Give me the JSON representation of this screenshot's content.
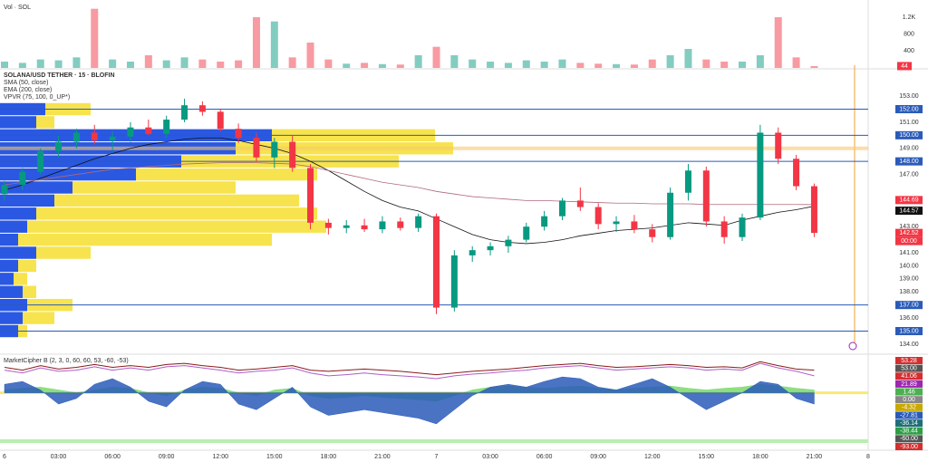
{
  "chart_data": [
    {
      "type": "bar",
      "title": "Vol · SOL",
      "values": [
        150,
        120,
        200,
        180,
        250,
        1400,
        200,
        150,
        300,
        180,
        250,
        200,
        150,
        180,
        1200,
        1100,
        250,
        600,
        200,
        100,
        120,
        90,
        80,
        300,
        500,
        300,
        200,
        150,
        120,
        180,
        150,
        200,
        120,
        100,
        90,
        80,
        200,
        300,
        450,
        200,
        150,
        150,
        300,
        1200,
        250,
        44
      ],
      "ylim": [
        0,
        1500
      ],
      "yticks": [
        400,
        800,
        {
          "value": 1200,
          "label": "1.2K"
        }
      ]
    },
    {
      "type": "candlestick",
      "title": "SOLANA/USD TETHER · 15 · BLOFIN",
      "x": [
        0,
        1,
        2,
        3,
        4,
        5,
        6,
        7,
        8,
        9,
        10,
        11,
        12,
        13,
        14,
        15,
        16,
        17,
        18,
        19,
        20,
        21,
        22,
        23,
        24,
        25,
        26,
        27,
        28,
        29,
        30,
        31,
        32,
        33,
        34,
        35,
        36,
        37,
        38,
        39,
        40,
        41,
        42,
        43,
        44,
        45
      ],
      "open": [
        145.5,
        146.2,
        147.2,
        148.8,
        149.5,
        150.2,
        149.6,
        149.9,
        150.6,
        150.1,
        151.2,
        152.3,
        151.8,
        150.5,
        149.8,
        148.3,
        149.5,
        147.5,
        143.3,
        142.9,
        143.1,
        142.8,
        143.4,
        142.9,
        143.8,
        136.8,
        140.8,
        141.2,
        141.5,
        142,
        143,
        143.8,
        145,
        144.5,
        143.2,
        143.4,
        142.8,
        142.2,
        145.6,
        147.3,
        143.4,
        142.2,
        143.7,
        150.2,
        148.2,
        146.1
      ],
      "high": [
        146.5,
        147.5,
        149,
        150,
        150.5,
        150.8,
        150.3,
        151,
        151.2,
        151.5,
        152.8,
        152.6,
        152,
        150.9,
        150.2,
        149.8,
        150,
        147.8,
        143.6,
        143.5,
        143.6,
        143.8,
        143.7,
        144,
        144,
        141.2,
        141.5,
        141.8,
        142.3,
        143.3,
        144.2,
        145.2,
        146,
        144.8,
        143.8,
        143.9,
        143.2,
        146,
        147.8,
        147.6,
        143.8,
        144,
        150.8,
        150.6,
        148.5,
        146.3
      ],
      "low": [
        145,
        145.8,
        147,
        148.3,
        149,
        149.3,
        148.8,
        149.5,
        150,
        149.8,
        151,
        151.5,
        150.3,
        149.4,
        148,
        147.5,
        147.2,
        142.8,
        142.4,
        142.5,
        142.6,
        142.5,
        142.7,
        142.6,
        136.3,
        136.5,
        140.3,
        140.8,
        141,
        141.8,
        142.7,
        143.5,
        144.2,
        142.8,
        142.6,
        142.5,
        141.8,
        142,
        145,
        143,
        141.7,
        141.9,
        143.5,
        147.8,
        145.8,
        142.2
      ],
      "close": [
        146.2,
        147.2,
        148.8,
        149.5,
        150.2,
        149.6,
        149.9,
        150.6,
        150.1,
        151.2,
        152.3,
        151.8,
        150.5,
        149.8,
        148.3,
        149.5,
        147.5,
        143.3,
        142.9,
        143.1,
        142.8,
        143.4,
        142.9,
        143.8,
        136.8,
        140.8,
        141.2,
        141.5,
        142,
        143,
        143.8,
        145,
        144.5,
        143.2,
        143.4,
        142.8,
        142.2,
        145.6,
        147.3,
        143.4,
        142.2,
        143.7,
        150.2,
        148.2,
        146.1,
        142.52
      ],
      "up_color": "#089981",
      "down_color": "#f23645",
      "series": [
        {
          "name": "SMA (50, close)",
          "color": "#111111",
          "values": [
            145.8,
            146.2,
            146.7,
            147.2,
            147.7,
            148.2,
            148.6,
            149,
            149.3,
            149.5,
            149.7,
            149.8,
            149.8,
            149.6,
            149.3,
            149,
            148.6,
            148,
            147.3,
            146.5,
            145.7,
            145,
            144.5,
            144.2,
            143.6,
            143,
            142.4,
            142,
            141.8,
            141.7,
            141.8,
            142,
            142.3,
            142.5,
            142.7,
            142.8,
            142.9,
            143.1,
            143.3,
            143.2,
            143.1,
            143.5,
            143.8,
            144.1,
            144.3,
            144.57
          ]
        },
        {
          "name": "EMA (200, close)",
          "color": "#b0697a",
          "values": [
            146.2,
            146.4,
            146.6,
            146.8,
            147,
            147.2,
            147.4,
            147.5,
            147.6,
            147.7,
            147.8,
            147.85,
            147.9,
            147.9,
            147.9,
            147.85,
            147.8,
            147.6,
            147.3,
            147,
            146.7,
            146.4,
            146.2,
            146,
            145.7,
            145.5,
            145.3,
            145.2,
            145.1,
            145,
            145,
            144.95,
            144.9,
            144.85,
            144.8,
            144.8,
            144.75,
            144.75,
            144.75,
            144.7,
            144.7,
            144.7,
            144.7,
            144.7,
            144.7,
            144.69
          ]
        }
      ],
      "profile": {
        "name": "VPVR (75, 100, 0_UP*)",
        "up_color": "#1f4fe0",
        "down_color": "#f6e03a",
        "levels": [
          135,
          136,
          137,
          138,
          139,
          140,
          141,
          142,
          143,
          144,
          145,
          146,
          147,
          148,
          149,
          150,
          151,
          152
        ],
        "up": [
          20,
          25,
          30,
          25,
          15,
          20,
          40,
          20,
          30,
          40,
          60,
          80,
          150,
          200,
          260,
          300,
          40,
          50
        ],
        "down": [
          10,
          35,
          50,
          15,
          15,
          20,
          60,
          280,
          330,
          310,
          270,
          180,
          200,
          240,
          240,
          180,
          20,
          50
        ]
      },
      "levels": [
        {
          "value": 152,
          "label": "152.00"
        },
        {
          "value": 150,
          "label": "150.00"
        },
        {
          "value": 148,
          "label": "148.00"
        },
        {
          "value": 137,
          "label": "137.00"
        },
        {
          "value": 135,
          "label": "135.00"
        }
      ],
      "level_color": "#2a5bb8",
      "countdown": "00:00",
      "ylim": [
        133.3,
        154.95
      ],
      "yticks": [
        {
          "value": 134,
          "label": "134.00"
        },
        {
          "value": 136,
          "label": "136.00"
        },
        {
          "value": 138,
          "label": "138.00"
        },
        {
          "value": 139,
          "label": "139.00"
        },
        {
          "value": 140,
          "label": "140.00"
        },
        {
          "value": 141,
          "label": "141.00"
        },
        {
          "value": 143,
          "label": "143.00"
        },
        {
          "value": 147,
          "label": "147.00"
        },
        {
          "value": 149,
          "label": "149.00"
        },
        {
          "value": 151,
          "label": "151.00"
        },
        {
          "value": 153,
          "label": "153.00"
        }
      ],
      "xlim": [
        0,
        48
      ],
      "xticks": [
        {
          "value": 0,
          "label": "6"
        },
        {
          "value": 3,
          "label": "03:00"
        },
        {
          "value": 6,
          "label": "06:00"
        },
        {
          "value": 9,
          "label": "09:00"
        },
        {
          "value": 12,
          "label": "12:00"
        },
        {
          "value": 15,
          "label": "15:00"
        },
        {
          "value": 18,
          "label": "18:00"
        },
        {
          "value": 21,
          "label": "21:00"
        },
        {
          "value": 24,
          "label": "7"
        },
        {
          "value": 27,
          "label": "03:00"
        },
        {
          "value": 30,
          "label": "06:00"
        },
        {
          "value": 33,
          "label": "09:00"
        },
        {
          "value": 36,
          "label": "12:00"
        },
        {
          "value": 39,
          "label": "15:00"
        },
        {
          "value": 42,
          "label": "18:00"
        },
        {
          "value": 45,
          "label": "21:00"
        },
        {
          "value": 48,
          "label": "8"
        }
      ]
    },
    {
      "type": "indicator",
      "title": "MarketCipher B (2, 3, 0, 60, 60, 53, -60, -53)",
      "ylim": [
        -100,
        65
      ],
      "series": [
        {
          "color": "#7bd96b",
          "style": "area",
          "values": [
            5,
            8,
            10,
            5,
            0,
            5,
            10,
            8,
            0,
            -5,
            5,
            10,
            8,
            0,
            -5,
            5,
            8,
            -5,
            -10,
            -8,
            -5,
            -8,
            -10,
            -12,
            -15,
            -5,
            5,
            10,
            12,
            10,
            8,
            10,
            12,
            8,
            5,
            8,
            10,
            12,
            8,
            5,
            8,
            10,
            15,
            12,
            8,
            5
          ]
        },
        {
          "color": "#2a5bb8",
          "style": "area",
          "values": [
            15,
            20,
            5,
            -20,
            -10,
            15,
            25,
            10,
            -15,
            -25,
            5,
            20,
            15,
            -20,
            -30,
            -10,
            10,
            -25,
            -40,
            -35,
            -30,
            -35,
            -40,
            -45,
            -55,
            -30,
            -5,
            10,
            15,
            10,
            20,
            28,
            25,
            10,
            5,
            15,
            25,
            10,
            -10,
            -30,
            -15,
            0,
            20,
            15,
            -10,
            -20
          ]
        },
        {
          "color": "#8b1a1a",
          "style": "line",
          "values": [
            45,
            40,
            48,
            42,
            45,
            50,
            45,
            48,
            45,
            50,
            52,
            48,
            45,
            40,
            42,
            45,
            48,
            40,
            38,
            40,
            42,
            40,
            38,
            35,
            32,
            35,
            38,
            40,
            42,
            45,
            48,
            50,
            52,
            48,
            45,
            46,
            48,
            50,
            48,
            45,
            46,
            44,
            55,
            48,
            42,
            40
          ]
        },
        {
          "color": "#b05cc8",
          "style": "line",
          "values": [
            40,
            35,
            44,
            38,
            40,
            46,
            40,
            44,
            40,
            46,
            48,
            44,
            40,
            35,
            38,
            40,
            44,
            35,
            30,
            32,
            35,
            32,
            30,
            28,
            25,
            30,
            33,
            35,
            38,
            40,
            44,
            46,
            48,
            44,
            40,
            42,
            44,
            46,
            44,
            40,
            42,
            40,
            52,
            44,
            38,
            30
          ]
        }
      ],
      "right_labels": [
        "53.28",
        "53.00",
        "41.06",
        "21.89",
        "1.46",
        "0.00",
        "-4.32",
        "-27.81",
        "-36.14",
        "-38.44",
        "-60.00",
        "-93.00"
      ],
      "right_label_colors": [
        "#d32f2f",
        "#555555",
        "#d32f2f",
        "#9c27b0",
        "#4caf50",
        "#888888",
        "#c9a800",
        "#2a5bb8",
        "#1f6f7a",
        "#2e9e44",
        "#555555",
        "#d32f2f"
      ]
    }
  ]
}
